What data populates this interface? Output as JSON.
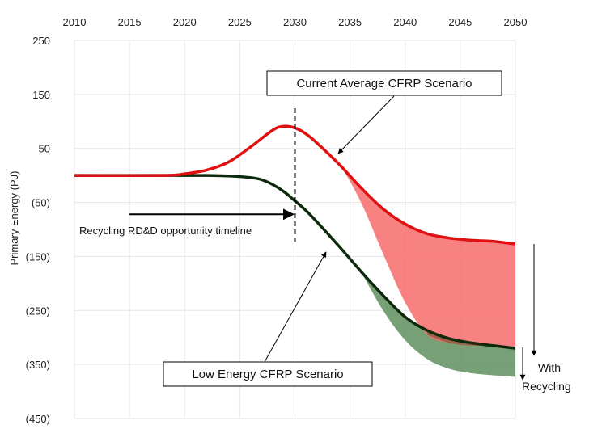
{
  "chart_data": {
    "type": "area",
    "title": "",
    "xlabel": "",
    "ylabel": "Primary Energy (PJ)",
    "xlim": [
      2010,
      2050
    ],
    "ylim": [
      -450,
      250
    ],
    "x_ticks": [
      2010,
      2015,
      2020,
      2025,
      2030,
      2035,
      2040,
      2045,
      2050
    ],
    "x_tick_labels": [
      "2010",
      "2015",
      "2020",
      "2025",
      "2030",
      "2035",
      "2040",
      "2045",
      "2050"
    ],
    "x_axis_position": "top",
    "y_ticks": [
      250,
      150,
      50,
      -50,
      -150,
      -250,
      -350,
      -450
    ],
    "y_tick_labels": [
      "250",
      "150",
      "50",
      "(50)",
      "(150)",
      "(250)",
      "(350)",
      "(450)"
    ],
    "grid": true,
    "colors": {
      "current": "#e01010",
      "current_fill": "#f76b6b",
      "low": "#0d2a0d",
      "low_fill": "#5f8f5f",
      "overlap_fill": "#8a5a3c",
      "grid": "#e6e6e6",
      "annotation": "#000000"
    },
    "series": [
      {
        "name": "Current Average CFRP Scenario",
        "role": "line",
        "x": [
          2010,
          2018,
          2020,
          2022,
          2024,
          2026,
          2028,
          2029,
          2030,
          2031,
          2032,
          2034,
          2036,
          2038,
          2040,
          2042,
          2044,
          2046,
          2048,
          2050
        ],
        "y": [
          0,
          0,
          3,
          10,
          25,
          53,
          84,
          91,
          88,
          77,
          60,
          21,
          -23,
          -62,
          -90,
          -108,
          -116,
          -120,
          -122,
          -127
        ]
      },
      {
        "name": "Current Average CFRP Scenario with recycling",
        "role": "lower-bound",
        "x": [
          2032,
          2034,
          2036,
          2038,
          2040,
          2042,
          2044,
          2046,
          2048,
          2050
        ],
        "y": [
          60,
          21,
          -50,
          -145,
          -235,
          -295,
          -310,
          -315,
          -315,
          -317
        ]
      },
      {
        "name": "Low Energy CFRP Scenario",
        "role": "line",
        "x": [
          2010,
          2020,
          2022,
          2024,
          2026,
          2027,
          2028,
          2029,
          2030,
          2031,
          2032,
          2034,
          2036,
          2038,
          2040,
          2042,
          2044,
          2046,
          2048,
          2050
        ],
        "y": [
          0,
          0,
          0,
          -1,
          -4,
          -8,
          -17,
          -30,
          -47,
          -65,
          -86,
          -131,
          -178,
          -222,
          -262,
          -287,
          -302,
          -310,
          -315,
          -320
        ]
      },
      {
        "name": "Low Energy CFRP Scenario with recycling",
        "role": "lower-bound",
        "x": [
          2036,
          2038,
          2040,
          2042,
          2044,
          2046,
          2048,
          2050
        ],
        "y": [
          -178,
          -250,
          -305,
          -340,
          -358,
          -366,
          -370,
          -373
        ]
      }
    ],
    "annotations": {
      "current_box": "Current Average CFRP Scenario",
      "low_box": "Low Energy CFRP Scenario",
      "timeline": "Recycling RD&D opportunity timeline",
      "with_recycling": [
        "With",
        "Recycling"
      ],
      "timeline_start": 2015,
      "timeline_end": 2030,
      "timeline_y": -72,
      "dashed_x": 2030
    }
  }
}
